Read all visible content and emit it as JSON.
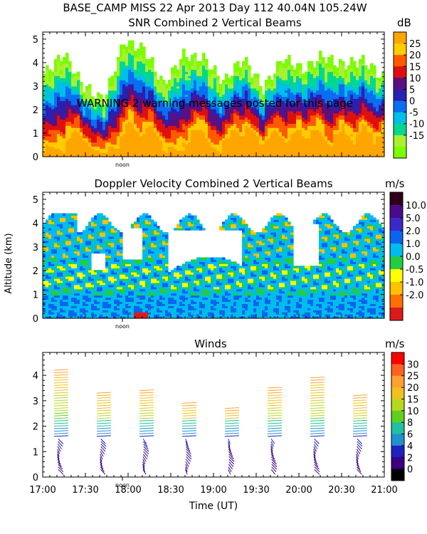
{
  "header": {
    "line1": "BASE_CAMP MISS  22 Apr 2013 Day 112 40.04N 105.24W"
  },
  "warning": "WARNING  2 warning messages posted for this page",
  "noon_label": "noon",
  "x_ticks": [
    "17:00",
    "17:30",
    "18:00",
    "18:30",
    "19:00",
    "19:30",
    "20:00",
    "20:30",
    "21:00"
  ],
  "x_axis_label": "Time (UT)",
  "shared_ylabel": "Altitude (km)",
  "chart_data": [
    {
      "type": "heatmap",
      "title": "SNR Combined 2 Vertical Beams",
      "unit": "dB",
      "x_range": [
        "17:00",
        "21:00"
      ],
      "ylim": [
        0,
        5.3
      ],
      "y_ticks": [
        "0",
        "1",
        "2",
        "3",
        "4",
        "5"
      ],
      "colorbar": {
        "labels": [
          "25",
          "20",
          "15",
          "10",
          "5",
          "0",
          "-5",
          "-10",
          "-15"
        ],
        "colors": [
          "#ffa500",
          "#ffcc00",
          "#ff5a00",
          "#dd1010",
          "#5a1080",
          "#2a20b0",
          "#0a6ef0",
          "#00bfe8",
          "#00d890",
          "#a8f030",
          "#7cfc00"
        ]
      },
      "echo_tops_km": [
        3.5,
        4.4,
        3.0,
        2.4,
        4.9,
        4.6,
        3.1,
        4.3,
        4.2,
        3.2,
        4.2,
        2.9,
        4.2,
        3.7,
        4.3,
        3.9,
        4.1,
        3.4
      ],
      "plumes_time": [
        "17:20",
        "17:58",
        "18:12",
        "18:46",
        "19:10",
        "19:22",
        "19:38",
        "19:56",
        "20:08",
        "20:27",
        "20:42",
        "20:56"
      ]
    },
    {
      "type": "heatmap",
      "title": "Doppler Velocity Combined 2 Vertical Beams",
      "unit": "m/s",
      "x_range": [
        "17:00",
        "21:00"
      ],
      "ylim": [
        0,
        5.3
      ],
      "y_ticks": [
        "0",
        "1",
        "2",
        "3",
        "4",
        "5"
      ],
      "colorbar": {
        "labels": [
          "10.0",
          "5.0",
          "2.0",
          "1.0",
          "0.0",
          "-0.5",
          "-1.0",
          "-2.0"
        ],
        "colors": [
          "#300018",
          "#4a0a8a",
          "#3c28c8",
          "#0a64f0",
          "#00bcec",
          "#22cc44",
          "#ffff00",
          "#ffc000",
          "#ff7000",
          "#dd1a1a"
        ]
      }
    },
    {
      "type": "scatter",
      "title": "Winds",
      "unit": "m/s",
      "x_range": [
        "17:00",
        "21:00"
      ],
      "ylim": [
        0,
        4.9
      ],
      "y_ticks": [
        "0",
        "1",
        "2",
        "3",
        "4"
      ],
      "colorbar": {
        "labels": [
          "30",
          "25",
          "20",
          "15",
          "10",
          "8",
          "6",
          "4",
          "2",
          "0"
        ],
        "colors": [
          "#ff0000",
          "#ff6020",
          "#ffa030",
          "#f0c020",
          "#b8d820",
          "#60d020",
          "#20c0a0",
          "#2090d0",
          "#2020c0",
          "#3a0080",
          "#000000"
        ]
      },
      "profiles_time": [
        "17:10",
        "17:40",
        "18:10",
        "18:40",
        "19:10",
        "19:40",
        "20:10",
        "20:40"
      ],
      "profile_tops_km": [
        4.3,
        3.4,
        3.5,
        3.0,
        2.8,
        3.6,
        4.0,
        3.3
      ]
    }
  ]
}
